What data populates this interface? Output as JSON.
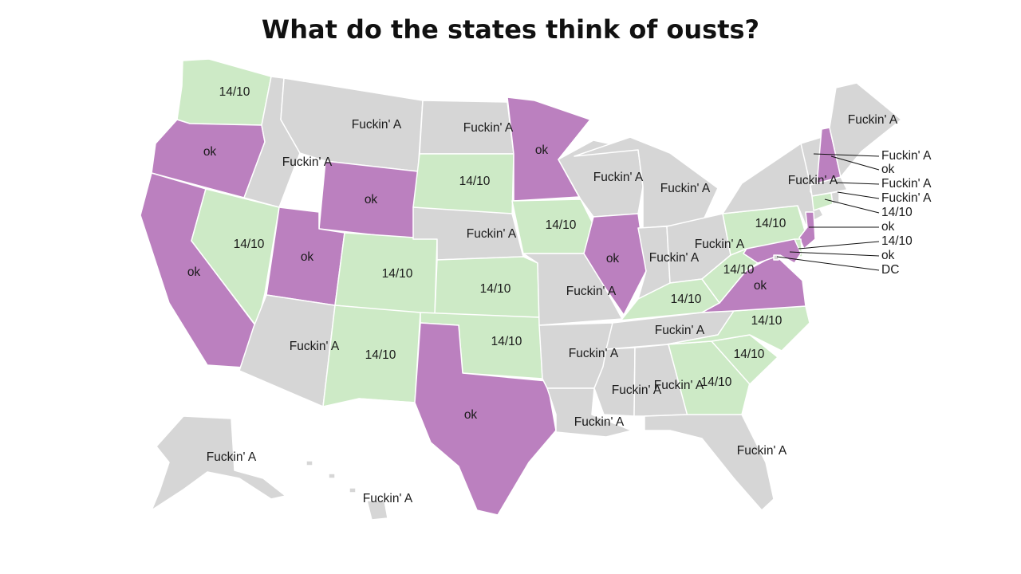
{
  "title": "What do the states think of ousts?",
  "colors": {
    "ok": "#bb80bf",
    "14/10": "#cdeac6",
    "Fuckin' A": "#d6d6d6"
  },
  "states": {
    "WA": "14/10",
    "OR": "ok",
    "CA": "ok",
    "ID": "Fuckin' A",
    "NV": "14/10",
    "MT": "Fuckin' A",
    "WY": "ok",
    "UT": "ok",
    "AZ": "Fuckin' A",
    "CO": "14/10",
    "NM": "14/10",
    "ND": "Fuckin' A",
    "SD": "14/10",
    "NE": "Fuckin' A",
    "KS": "14/10",
    "OK": "14/10",
    "TX": "ok",
    "MN": "ok",
    "IA": "14/10",
    "MO": "Fuckin' A",
    "AR": "Fuckin' A",
    "LA": "Fuckin' A",
    "WI": "Fuckin' A",
    "IL": "ok",
    "MI": "Fuckin' A",
    "IN": "Fuckin' A",
    "OH": "Fuckin' A",
    "KY": "14/10",
    "TN": "Fuckin' A",
    "MS": "Fuckin' A",
    "AL": "Fuckin' A",
    "GA": "14/10",
    "FL": "Fuckin' A",
    "SC": "14/10",
    "NC": "14/10",
    "VA": "ok",
    "WV": "14/10",
    "PA": "14/10",
    "NY": "Fuckin' A",
    "ME": "Fuckin' A",
    "VT": "Fuckin' A",
    "NH": "ok",
    "MA": "Fuckin' A",
    "RI": "Fuckin' A",
    "CT": "14/10",
    "NJ": "ok",
    "DE": "14/10",
    "MD": "ok",
    "DC": "Fuckin' A",
    "AK": "Fuckin' A",
    "HI": "Fuckin' A"
  },
  "callouts": [
    {
      "state": "VT",
      "text": "Fuckin' A"
    },
    {
      "state": "NH",
      "text": "ok"
    },
    {
      "state": "MA",
      "text": "Fuckin' A"
    },
    {
      "state": "RI",
      "text": "Fuckin' A"
    },
    {
      "state": "CT",
      "text": "14/10"
    },
    {
      "state": "NJ",
      "text": "ok"
    },
    {
      "state": "DE",
      "text": "14/10"
    },
    {
      "state": "MD",
      "text": "ok"
    },
    {
      "state": "DC",
      "text": "DC"
    }
  ]
}
